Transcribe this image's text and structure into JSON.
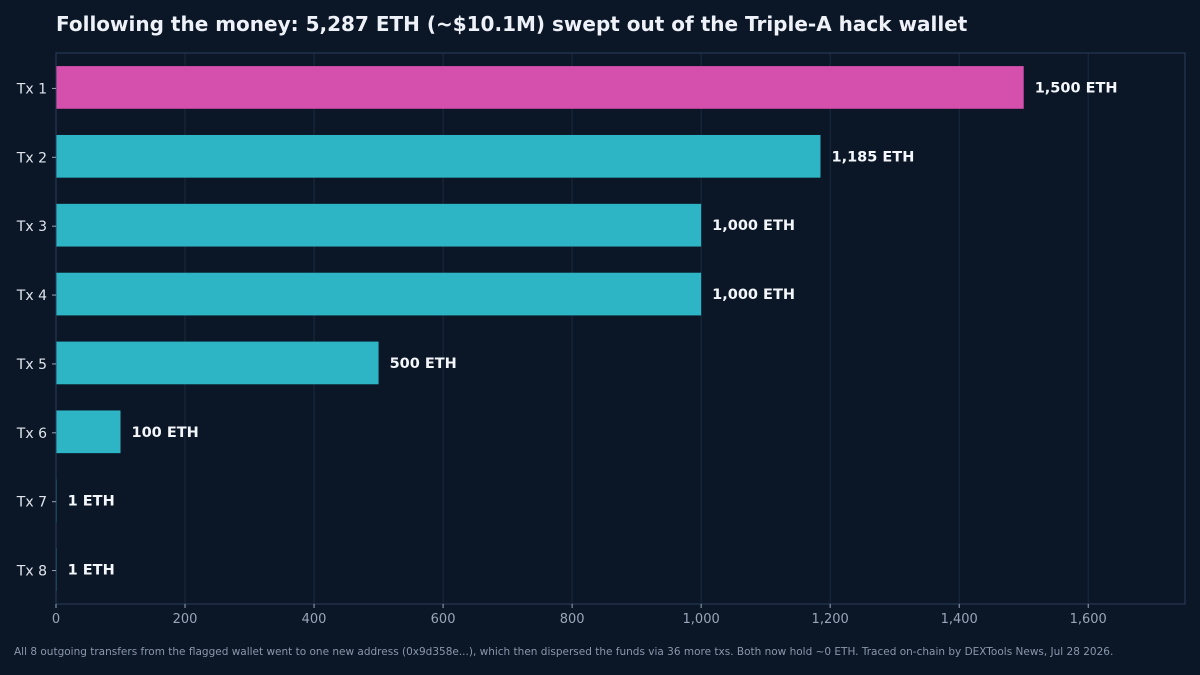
{
  "title": "Following the money: 5,287 ETH (~$10.1M) swept out of the Triple-A hack wallet",
  "caption": "All 8 outgoing transfers from the flagged wallet went to one new address (0x9d358e...), which then dispersed the funds via 36 more txs. Both now hold ~0 ETH. Traced on-chain by DEXTools News, Jul 28 2026.",
  "colors": {
    "background": "#0b1626",
    "highlight_bar": "#d54fad",
    "normal_bar": "#2eb5c5",
    "grid": "#1b2b42",
    "axis": "#2c3f5c"
  },
  "chart_data": {
    "type": "bar",
    "orientation": "horizontal",
    "categories": [
      "Tx 1",
      "Tx 2",
      "Tx 3",
      "Tx 4",
      "Tx 5",
      "Tx 6",
      "Tx 7",
      "Tx 8"
    ],
    "values": [
      1500,
      1185,
      1000,
      1000,
      500,
      100,
      1,
      1
    ],
    "data_labels": [
      "1,500 ETH",
      "1,185 ETH",
      "1,000 ETH",
      "1,000 ETH",
      "500 ETH",
      "100 ETH",
      "1 ETH",
      "1 ETH"
    ],
    "highlight_index": 0,
    "xlim": [
      0,
      1750
    ],
    "xticks": [
      0,
      200,
      400,
      600,
      800,
      1000,
      1200,
      1400,
      1600
    ],
    "xtick_labels": [
      "0",
      "200",
      "400",
      "600",
      "800",
      "1,000",
      "1,200",
      "1,400",
      "1,600"
    ],
    "grid": "vertical",
    "xlabel": "",
    "ylabel": ""
  }
}
